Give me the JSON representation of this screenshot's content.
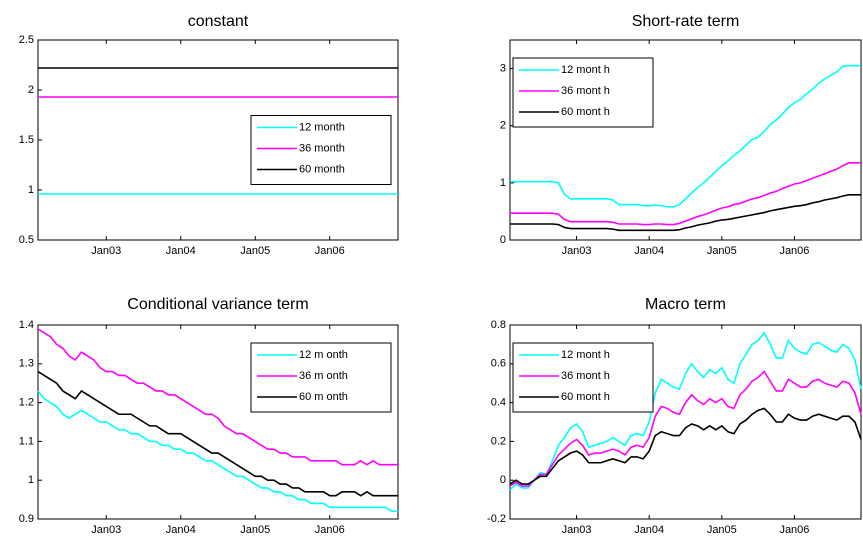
{
  "chart_data": [
    {
      "type": "line",
      "title": "constant",
      "legend": "center right",
      "categories": [
        null,
        null,
        null,
        null,
        null,
        null,
        null,
        null,
        null,
        null,
        null,
        "Jan03",
        null,
        null,
        null,
        null,
        null,
        null,
        null,
        null,
        null,
        null,
        null,
        "Jan04",
        null,
        null,
        null,
        null,
        null,
        null,
        null,
        null,
        null,
        null,
        null,
        "Jan05",
        null,
        null,
        null,
        null,
        null,
        null,
        null,
        null,
        null,
        null,
        null,
        "Jan06",
        null,
        null,
        null,
        null,
        null,
        null,
        null,
        null,
        null,
        null,
        null
      ],
      "ylim": [
        0.5,
        2.5
      ],
      "yticks": [
        0.5,
        1,
        1.5,
        2,
        2.5
      ],
      "series": [
        {
          "name": "12  month",
          "color": "#00ffff",
          "values": [
            0.96,
            0.96,
            0.96,
            0.96,
            0.96,
            0.96,
            0.96,
            0.96,
            0.96,
            0.96,
            0.96,
            0.96,
            0.96,
            0.96,
            0.96,
            0.96,
            0.96,
            0.96,
            0.96,
            0.96,
            0.96,
            0.96,
            0.96,
            0.96,
            0.96,
            0.96,
            0.96,
            0.96,
            0.96,
            0.96,
            0.96,
            0.96,
            0.96,
            0.96,
            0.96,
            0.96,
            0.96,
            0.96,
            0.96,
            0.96,
            0.96,
            0.96,
            0.96,
            0.96,
            0.96,
            0.96,
            0.96,
            0.96,
            0.96,
            0.96,
            0.96,
            0.96,
            0.96,
            0.96,
            0.96,
            0.96,
            0.96,
            0.96,
            0.96
          ]
        },
        {
          "name": "36  month",
          "color": "#ff00ff",
          "values": [
            1.93,
            1.93,
            1.93,
            1.93,
            1.93,
            1.93,
            1.93,
            1.93,
            1.93,
            1.93,
            1.93,
            1.93,
            1.93,
            1.93,
            1.93,
            1.93,
            1.93,
            1.93,
            1.93,
            1.93,
            1.93,
            1.93,
            1.93,
            1.93,
            1.93,
            1.93,
            1.93,
            1.93,
            1.93,
            1.93,
            1.93,
            1.93,
            1.93,
            1.93,
            1.93,
            1.93,
            1.93,
            1.93,
            1.93,
            1.93,
            1.93,
            1.93,
            1.93,
            1.93,
            1.93,
            1.93,
            1.93,
            1.93,
            1.93,
            1.93,
            1.93,
            1.93,
            1.93,
            1.93,
            1.93,
            1.93,
            1.93,
            1.93,
            1.93
          ]
        },
        {
          "name": "60  month",
          "color": "#000000",
          "values": [
            2.22,
            2.22,
            2.22,
            2.22,
            2.22,
            2.22,
            2.22,
            2.22,
            2.22,
            2.22,
            2.22,
            2.22,
            2.22,
            2.22,
            2.22,
            2.22,
            2.22,
            2.22,
            2.22,
            2.22,
            2.22,
            2.22,
            2.22,
            2.22,
            2.22,
            2.22,
            2.22,
            2.22,
            2.22,
            2.22,
            2.22,
            2.22,
            2.22,
            2.22,
            2.22,
            2.22,
            2.22,
            2.22,
            2.22,
            2.22,
            2.22,
            2.22,
            2.22,
            2.22,
            2.22,
            2.22,
            2.22,
            2.22,
            2.22,
            2.22,
            2.22,
            2.22,
            2.22,
            2.22,
            2.22,
            2.22,
            2.22,
            2.22,
            2.22
          ]
        }
      ]
    },
    {
      "type": "line",
      "title": "Short-rate term",
      "legend": "upper left",
      "categories": [
        null,
        null,
        null,
        null,
        null,
        null,
        null,
        null,
        null,
        null,
        null,
        "Jan03",
        null,
        null,
        null,
        null,
        null,
        null,
        null,
        null,
        null,
        null,
        null,
        "Jan04",
        null,
        null,
        null,
        null,
        null,
        null,
        null,
        null,
        null,
        null,
        null,
        "Jan05",
        null,
        null,
        null,
        null,
        null,
        null,
        null,
        null,
        null,
        null,
        null,
        "Jan06",
        null,
        null,
        null,
        null,
        null,
        null,
        null,
        null,
        null,
        null,
        null
      ],
      "ylim": [
        0,
        3.5
      ],
      "yticks": [
        0,
        1,
        2,
        3
      ],
      "series": [
        {
          "name": "12 mont h",
          "color": "#00ffff",
          "values": [
            1.02,
            1.02,
            1.02,
            1.02,
            1.02,
            1.02,
            1.02,
            1.02,
            1.0,
            0.8,
            0.72,
            0.72,
            0.72,
            0.72,
            0.72,
            0.72,
            0.72,
            0.7,
            0.62,
            0.62,
            0.62,
            0.62,
            0.6,
            0.6,
            0.61,
            0.6,
            0.58,
            0.58,
            0.62,
            0.72,
            0.82,
            0.92,
            1.0,
            1.1,
            1.2,
            1.3,
            1.38,
            1.48,
            1.56,
            1.66,
            1.76,
            1.8,
            1.9,
            2.02,
            2.1,
            2.2,
            2.32,
            2.4,
            2.46,
            2.56,
            2.64,
            2.74,
            2.82,
            2.88,
            2.94,
            3.04,
            3.05,
            3.05,
            3.05
          ]
        },
        {
          "name": "36 mont h",
          "color": "#ff00ff",
          "values": [
            0.47,
            0.47,
            0.47,
            0.47,
            0.47,
            0.47,
            0.47,
            0.47,
            0.45,
            0.36,
            0.32,
            0.32,
            0.32,
            0.32,
            0.32,
            0.32,
            0.32,
            0.31,
            0.28,
            0.28,
            0.28,
            0.28,
            0.27,
            0.27,
            0.28,
            0.28,
            0.27,
            0.27,
            0.29,
            0.33,
            0.37,
            0.41,
            0.44,
            0.48,
            0.52,
            0.56,
            0.58,
            0.62,
            0.64,
            0.68,
            0.72,
            0.74,
            0.78,
            0.82,
            0.85,
            0.9,
            0.94,
            0.98,
            1.0,
            1.04,
            1.08,
            1.12,
            1.16,
            1.2,
            1.24,
            1.3,
            1.35,
            1.35,
            1.35
          ]
        },
        {
          "name": "60 mont h",
          "color": "#000000",
          "values": [
            0.28,
            0.28,
            0.28,
            0.28,
            0.28,
            0.28,
            0.28,
            0.28,
            0.27,
            0.22,
            0.2,
            0.2,
            0.2,
            0.2,
            0.2,
            0.2,
            0.2,
            0.19,
            0.17,
            0.17,
            0.17,
            0.17,
            0.17,
            0.17,
            0.17,
            0.17,
            0.17,
            0.17,
            0.18,
            0.21,
            0.23,
            0.26,
            0.28,
            0.3,
            0.33,
            0.35,
            0.36,
            0.38,
            0.4,
            0.42,
            0.44,
            0.46,
            0.48,
            0.51,
            0.53,
            0.55,
            0.57,
            0.59,
            0.6,
            0.62,
            0.65,
            0.67,
            0.7,
            0.72,
            0.74,
            0.77,
            0.79,
            0.79,
            0.79
          ]
        }
      ]
    },
    {
      "type": "line",
      "title": "Conditional variance term",
      "legend": "upper right",
      "categories": [
        null,
        null,
        null,
        null,
        null,
        null,
        null,
        null,
        null,
        null,
        null,
        "Jan03",
        null,
        null,
        null,
        null,
        null,
        null,
        null,
        null,
        null,
        null,
        null,
        "Jan04",
        null,
        null,
        null,
        null,
        null,
        null,
        null,
        null,
        null,
        null,
        null,
        "Jan05",
        null,
        null,
        null,
        null,
        null,
        null,
        null,
        null,
        null,
        null,
        null,
        "Jan06",
        null,
        null,
        null,
        null,
        null,
        null,
        null,
        null,
        null,
        null,
        null
      ],
      "ylim": [
        0.9,
        1.4
      ],
      "yticks": [
        0.9,
        1,
        1.1,
        1.2,
        1.3,
        1.4
      ],
      "series": [
        {
          "name": "12 m onth",
          "color": "#00ffff",
          "values": [
            1.23,
            1.21,
            1.2,
            1.19,
            1.17,
            1.16,
            1.17,
            1.18,
            1.17,
            1.16,
            1.15,
            1.15,
            1.14,
            1.13,
            1.13,
            1.12,
            1.12,
            1.11,
            1.1,
            1.1,
            1.09,
            1.09,
            1.08,
            1.08,
            1.07,
            1.07,
            1.06,
            1.05,
            1.05,
            1.04,
            1.03,
            1.02,
            1.01,
            1.01,
            1.0,
            0.99,
            0.98,
            0.98,
            0.97,
            0.97,
            0.96,
            0.96,
            0.95,
            0.95,
            0.94,
            0.94,
            0.94,
            0.93,
            0.93,
            0.93,
            0.93,
            0.93,
            0.93,
            0.93,
            0.93,
            0.93,
            0.93,
            0.92,
            0.92
          ]
        },
        {
          "name": "36 m onth",
          "color": "#ff00ff",
          "values": [
            1.39,
            1.38,
            1.37,
            1.35,
            1.34,
            1.32,
            1.31,
            1.33,
            1.32,
            1.31,
            1.29,
            1.28,
            1.28,
            1.27,
            1.27,
            1.26,
            1.25,
            1.25,
            1.24,
            1.23,
            1.23,
            1.22,
            1.22,
            1.21,
            1.2,
            1.19,
            1.18,
            1.17,
            1.17,
            1.16,
            1.14,
            1.13,
            1.12,
            1.12,
            1.11,
            1.1,
            1.09,
            1.08,
            1.08,
            1.07,
            1.07,
            1.06,
            1.06,
            1.06,
            1.05,
            1.05,
            1.05,
            1.05,
            1.05,
            1.04,
            1.04,
            1.04,
            1.05,
            1.04,
            1.05,
            1.04,
            1.04,
            1.04,
            1.04
          ]
        },
        {
          "name": "60 m onth",
          "color": "#000000",
          "values": [
            1.28,
            1.27,
            1.26,
            1.25,
            1.23,
            1.22,
            1.21,
            1.23,
            1.22,
            1.21,
            1.2,
            1.19,
            1.18,
            1.17,
            1.17,
            1.17,
            1.16,
            1.15,
            1.14,
            1.14,
            1.13,
            1.12,
            1.12,
            1.12,
            1.11,
            1.1,
            1.09,
            1.08,
            1.07,
            1.07,
            1.06,
            1.05,
            1.04,
            1.03,
            1.02,
            1.01,
            1.01,
            1.0,
            1.0,
            0.99,
            0.99,
            0.98,
            0.98,
            0.97,
            0.97,
            0.97,
            0.97,
            0.96,
            0.96,
            0.97,
            0.97,
            0.97,
            0.96,
            0.97,
            0.96,
            0.96,
            0.96,
            0.96,
            0.96
          ]
        }
      ]
    },
    {
      "type": "line",
      "title": "Macro term",
      "legend": "upper left",
      "categories": [
        null,
        null,
        null,
        null,
        null,
        null,
        null,
        null,
        null,
        null,
        null,
        "Jan03",
        null,
        null,
        null,
        null,
        null,
        null,
        null,
        null,
        null,
        null,
        null,
        "Jan04",
        null,
        null,
        null,
        null,
        null,
        null,
        null,
        null,
        null,
        null,
        null,
        "Jan05",
        null,
        null,
        null,
        null,
        null,
        null,
        null,
        null,
        null,
        null,
        null,
        "Jan06",
        null,
        null,
        null,
        null,
        null,
        null,
        null,
        null,
        null,
        null,
        null
      ],
      "ylim": [
        -0.2,
        0.8
      ],
      "yticks": [
        -0.2,
        0,
        0.2,
        0.4,
        0.6,
        0.8
      ],
      "series": [
        {
          "name": "12 mont h",
          "color": "#00ffff",
          "values": [
            -0.05,
            -0.02,
            -0.04,
            -0.04,
            0.0,
            0.04,
            0.03,
            0.1,
            0.18,
            0.22,
            0.27,
            0.29,
            0.25,
            0.17,
            0.18,
            0.19,
            0.2,
            0.22,
            0.2,
            0.18,
            0.23,
            0.24,
            0.23,
            0.3,
            0.45,
            0.52,
            0.5,
            0.48,
            0.47,
            0.55,
            0.6,
            0.56,
            0.53,
            0.57,
            0.55,
            0.58,
            0.52,
            0.5,
            0.6,
            0.65,
            0.7,
            0.72,
            0.76,
            0.7,
            0.63,
            0.63,
            0.72,
            0.68,
            0.66,
            0.65,
            0.7,
            0.71,
            0.69,
            0.67,
            0.66,
            0.7,
            0.68,
            0.62,
            0.47
          ]
        },
        {
          "name": "36 mont h",
          "color": "#ff00ff",
          "values": [
            -0.03,
            -0.01,
            -0.03,
            -0.03,
            0.0,
            0.03,
            0.03,
            0.08,
            0.13,
            0.16,
            0.19,
            0.21,
            0.18,
            0.13,
            0.14,
            0.14,
            0.15,
            0.16,
            0.15,
            0.13,
            0.17,
            0.18,
            0.17,
            0.22,
            0.33,
            0.38,
            0.37,
            0.35,
            0.34,
            0.4,
            0.44,
            0.41,
            0.39,
            0.42,
            0.4,
            0.42,
            0.38,
            0.37,
            0.44,
            0.47,
            0.51,
            0.53,
            0.56,
            0.51,
            0.46,
            0.46,
            0.52,
            0.5,
            0.48,
            0.48,
            0.51,
            0.52,
            0.5,
            0.49,
            0.48,
            0.51,
            0.5,
            0.45,
            0.34
          ]
        },
        {
          "name": "60 mont h",
          "color": "#000000",
          "values": [
            -0.02,
            0.0,
            -0.02,
            -0.02,
            0.0,
            0.02,
            0.02,
            0.06,
            0.1,
            0.12,
            0.14,
            0.15,
            0.13,
            0.09,
            0.09,
            0.09,
            0.1,
            0.11,
            0.1,
            0.09,
            0.12,
            0.12,
            0.11,
            0.15,
            0.23,
            0.25,
            0.24,
            0.23,
            0.23,
            0.27,
            0.29,
            0.28,
            0.26,
            0.28,
            0.26,
            0.28,
            0.25,
            0.24,
            0.29,
            0.31,
            0.34,
            0.36,
            0.37,
            0.34,
            0.3,
            0.3,
            0.34,
            0.32,
            0.31,
            0.31,
            0.33,
            0.34,
            0.33,
            0.32,
            0.31,
            0.33,
            0.33,
            0.3,
            0.21
          ]
        }
      ]
    }
  ]
}
